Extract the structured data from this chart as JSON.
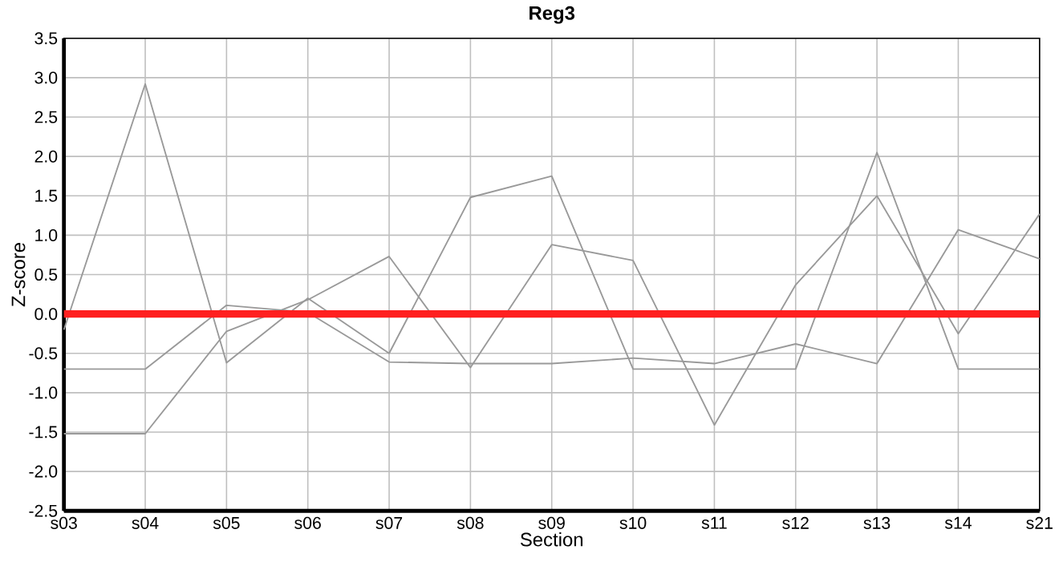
{
  "chart_data": {
    "type": "line",
    "title": "Reg3",
    "xlabel": "Section",
    "ylabel": "Z-score",
    "categories": [
      "s03",
      "s04",
      "s05",
      "s06",
      "s07",
      "s08",
      "s09",
      "s10",
      "s11",
      "s12",
      "s13",
      "s14",
      "s21"
    ],
    "series": [
      {
        "color": "#999999",
        "values": [
          -0.2,
          2.92,
          -0.62,
          0.2,
          -0.5,
          1.48,
          1.75,
          -0.7,
          -0.7,
          -0.7,
          2.05,
          -0.7,
          -0.7
        ]
      },
      {
        "color": "#999999",
        "values": [
          -0.7,
          -0.7,
          0.11,
          0.02,
          -0.61,
          -0.63,
          -0.63,
          -0.56,
          -0.63,
          -0.38,
          -0.63,
          1.07,
          0.7
        ]
      },
      {
        "color": "#999999",
        "values": [
          -1.52,
          -1.52,
          -0.22,
          0.18,
          0.73,
          -0.68,
          0.88,
          0.68,
          -1.41,
          0.37,
          1.5,
          -0.25,
          1.27
        ]
      }
    ],
    "ylim": [
      -2.5,
      3.5
    ],
    "yticks": [
      -2.5,
      {
        "value": -2,
        "label": "-2.0"
      },
      -1.5,
      {
        "value": -1,
        "label": "-1.0"
      },
      -0.5,
      {
        "value": 0,
        "label": "0.0"
      },
      0.5,
      {
        "value": 1,
        "label": "1.0"
      },
      1.5,
      {
        "value": 2,
        "label": "2.0"
      },
      2.5,
      {
        "value": 3,
        "label": "3.0"
      },
      3.5
    ],
    "ref_lines": [
      {
        "axis": "y",
        "value": 0,
        "color": "#ff2020"
      }
    ],
    "grid": true,
    "marker": "none",
    "line_style": "solid"
  }
}
